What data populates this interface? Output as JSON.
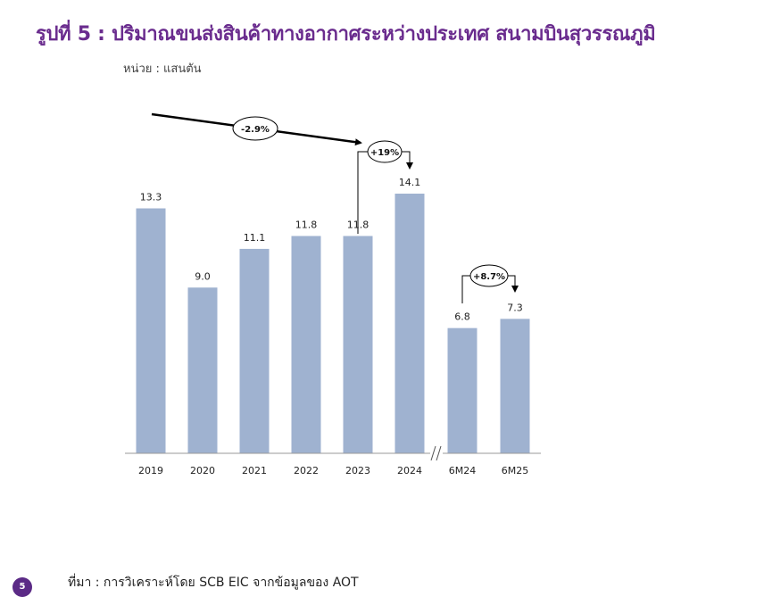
{
  "title": "รูปที่ 5 : ปริมาณขนส่งสินค้าทางอากาศระหว่างประเทศ สนามบินสุวรรณภูมิ",
  "unit_label": "หน่วย : แสนตัน",
  "source": "ที่มา : การวิเคราะห์โดย SCB EIC จากข้อมูลของ AOT",
  "page_number": "5",
  "colors": {
    "bar": "#9fb2d0",
    "title": "#6a2c8e",
    "badge": "#5b2a86"
  },
  "chart_data": {
    "type": "bar",
    "categories": [
      "2019",
      "2020",
      "2021",
      "2022",
      "2023",
      "2024",
      "6M24",
      "6M25"
    ],
    "values": [
      13.3,
      9.0,
      11.1,
      11.8,
      11.8,
      14.1,
      6.8,
      7.3
    ],
    "value_labels": [
      "13.3",
      "9.0",
      "11.1",
      "11.8",
      "11.8",
      "14.1",
      "6.8",
      "7.3"
    ],
    "ylim": [
      0,
      14.1
    ],
    "grid": false,
    "axis_break_after": "2024",
    "annotations": [
      {
        "label": "-2.9%",
        "from": "2019",
        "to": "2023",
        "style": "trend-arrow"
      },
      {
        "label": "+19%",
        "from": "2023",
        "to": "2024",
        "style": "bracket"
      },
      {
        "label": "+8.7%",
        "from": "6M24",
        "to": "6M25",
        "style": "bracket"
      }
    ]
  }
}
